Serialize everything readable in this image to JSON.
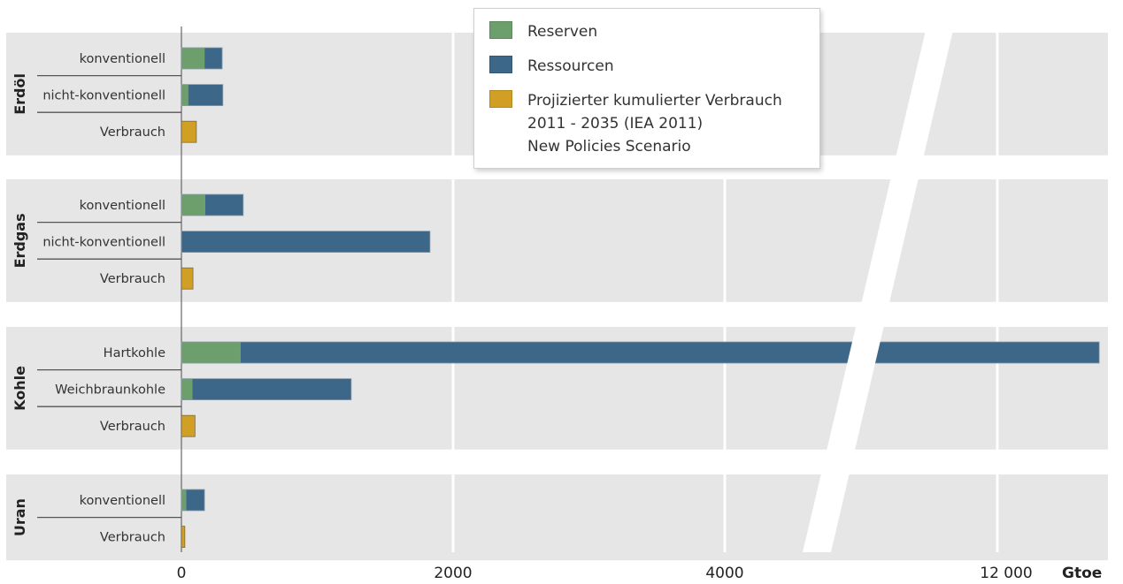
{
  "chart_data": {
    "type": "bar",
    "orientation": "horizontal",
    "stacked": true,
    "unit": "Gtoe",
    "x_tick_labels": [
      "0",
      "2000",
      "4000",
      "12 000"
    ],
    "x_unit_label": "Gtoe",
    "axis_break": {
      "from": 4600,
      "to": 11500
    },
    "grid": true,
    "legend_position": "top-center",
    "colors": {
      "Reserven": "#6c9f6c",
      "Ressourcen": "#3d6788",
      "Verbrauch": "#d19f24"
    },
    "groups": [
      {
        "name": "Erdöl",
        "rows": [
          {
            "label": "konventionell",
            "reserven": 170,
            "ressourcen": 130
          },
          {
            "label": "nicht-konventionell",
            "reserven": 50,
            "ressourcen": 255
          },
          {
            "label": "Verbrauch",
            "verbrauch": 110
          }
        ]
      },
      {
        "name": "Erdgas",
        "rows": [
          {
            "label": "konventionell",
            "reserven": 175,
            "ressourcen": 280
          },
          {
            "label": "nicht-konventionell",
            "reserven": 0,
            "ressourcen": 1830
          },
          {
            "label": "Verbrauch",
            "verbrauch": 85
          }
        ]
      },
      {
        "name": "Kohle",
        "rows": [
          {
            "label": "Hartkohle",
            "reserven": 435,
            "ressourcen": 12250
          },
          {
            "label": "Weichbraunkohle",
            "reserven": 80,
            "ressourcen": 1170
          },
          {
            "label": "Verbrauch",
            "verbrauch": 100
          }
        ]
      },
      {
        "name": "Uran",
        "rows": [
          {
            "label": "konventionell",
            "reserven": 35,
            "ressourcen": 135
          },
          {
            "label": "Verbrauch",
            "verbrauch": 25
          }
        ]
      }
    ]
  },
  "legend": {
    "items": [
      {
        "key": "reserven",
        "lines": [
          "Reserven"
        ]
      },
      {
        "key": "ressourcen",
        "lines": [
          "Ressourcen"
        ]
      },
      {
        "key": "verbrauch",
        "lines": [
          "Projizierter kumulierter Verbrauch",
          "2011 - 2035 (IEA 2011)",
          "New Policies Scenario"
        ]
      }
    ]
  }
}
